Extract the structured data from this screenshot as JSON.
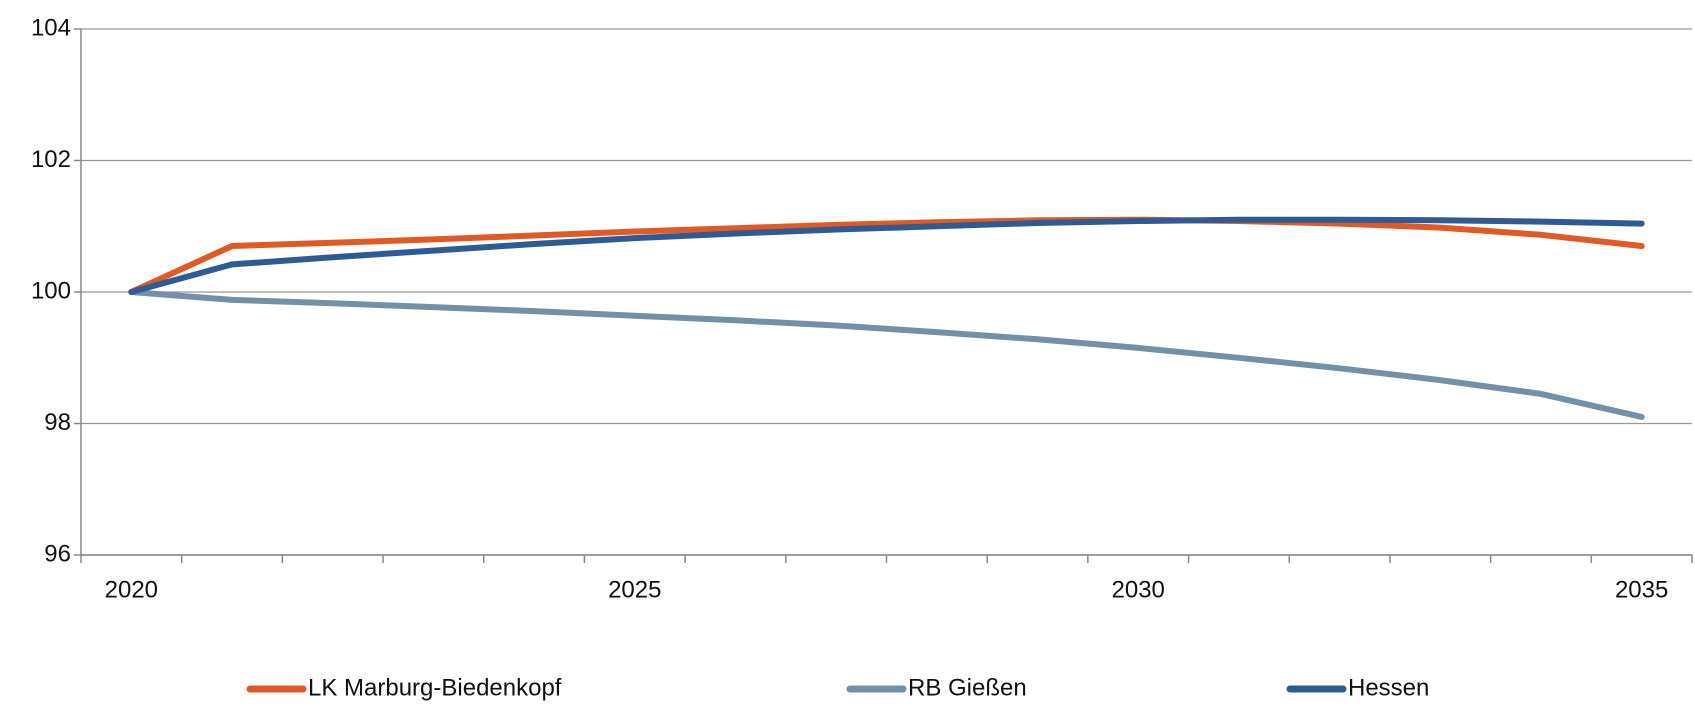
{
  "chart_data": {
    "type": "line",
    "x": [
      2020,
      2021,
      2022,
      2023,
      2024,
      2025,
      2026,
      2027,
      2028,
      2029,
      2030,
      2031,
      2032,
      2033,
      2034,
      2035
    ],
    "xlim": [
      2019.5,
      2035.5
    ],
    "xticks": [
      2020,
      2025,
      2030,
      2035
    ],
    "ylim": [
      96,
      104
    ],
    "yticks": [
      96,
      98,
      100,
      102,
      104
    ],
    "grid": true,
    "legend": "bottom",
    "series": [
      {
        "name": "LK Marburg-Biedenkopf",
        "color": "#e05a26",
        "values": [
          100,
          100.7,
          100.75,
          100.8,
          100.86,
          100.92,
          100.97,
          101.02,
          101.06,
          101.09,
          101.1,
          101.08,
          101.04,
          100.98,
          100.87,
          100.7
        ]
      },
      {
        "name": "RB Gießen",
        "color": "#7390a8",
        "values": [
          100,
          99.88,
          99.83,
          99.77,
          99.71,
          99.64,
          99.57,
          99.49,
          99.39,
          99.28,
          99.15,
          99.0,
          98.84,
          98.66,
          98.45,
          98.1
        ]
      },
      {
        "name": "Hessen",
        "color": "#2f5b94",
        "values": [
          100,
          100.42,
          100.53,
          100.63,
          100.73,
          100.82,
          100.89,
          100.95,
          101.0,
          101.05,
          101.08,
          101.1,
          101.1,
          101.09,
          101.07,
          101.04
        ]
      }
    ]
  }
}
